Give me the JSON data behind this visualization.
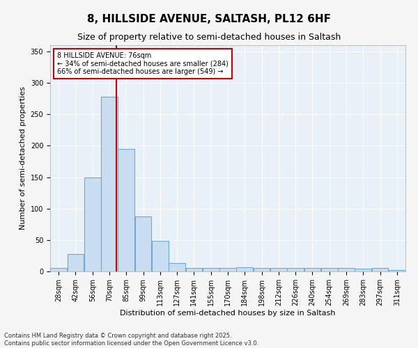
{
  "title_line1": "8, HILLSIDE AVENUE, SALTASH, PL12 6HF",
  "title_line2": "Size of property relative to semi-detached houses in Saltash",
  "xlabel": "Distribution of semi-detached houses by size in Saltash",
  "ylabel": "Number of semi-detached properties",
  "bar_color": "#c8ddf0",
  "bar_edge_color": "#6aaad4",
  "plot_bg_color": "#e8f0f8",
  "fig_bg_color": "#f5f5f5",
  "grid_color": "#ffffff",
  "annotation_text": "8 HILLSIDE AVENUE: 76sqm\n← 34% of semi-detached houses are smaller (284)\n66% of semi-detached houses are larger (549) →",
  "annotation_box_color": "#ffffff",
  "annotation_box_edge": "#cc0000",
  "vline_color": "#cc0000",
  "vline_x": 76,
  "categories": [
    "28sqm",
    "42sqm",
    "56sqm",
    "70sqm",
    "85sqm",
    "99sqm",
    "113sqm",
    "127sqm",
    "141sqm",
    "155sqm",
    "170sqm",
    "184sqm",
    "198sqm",
    "212sqm",
    "226sqm",
    "240sqm",
    "254sqm",
    "269sqm",
    "283sqm",
    "297sqm",
    "311sqm"
  ],
  "bin_edges": [
    21,
    35,
    49,
    63,
    77,
    91,
    105,
    119,
    133,
    147,
    161,
    175,
    189,
    203,
    217,
    231,
    245,
    259,
    273,
    287,
    301,
    315
  ],
  "values": [
    5,
    28,
    150,
    278,
    195,
    88,
    49,
    13,
    5,
    5,
    5,
    7,
    5,
    5,
    5,
    5,
    5,
    5,
    4,
    5,
    2
  ],
  "ylim": [
    0,
    360
  ],
  "yticks": [
    0,
    50,
    100,
    150,
    200,
    250,
    300,
    350
  ],
  "footnote": "Contains HM Land Registry data © Crown copyright and database right 2025.\nContains public sector information licensed under the Open Government Licence v3.0.",
  "title_fontsize": 11,
  "subtitle_fontsize": 9,
  "label_fontsize": 8,
  "tick_fontsize": 7,
  "annot_fontsize": 7,
  "footnote_fontsize": 6
}
